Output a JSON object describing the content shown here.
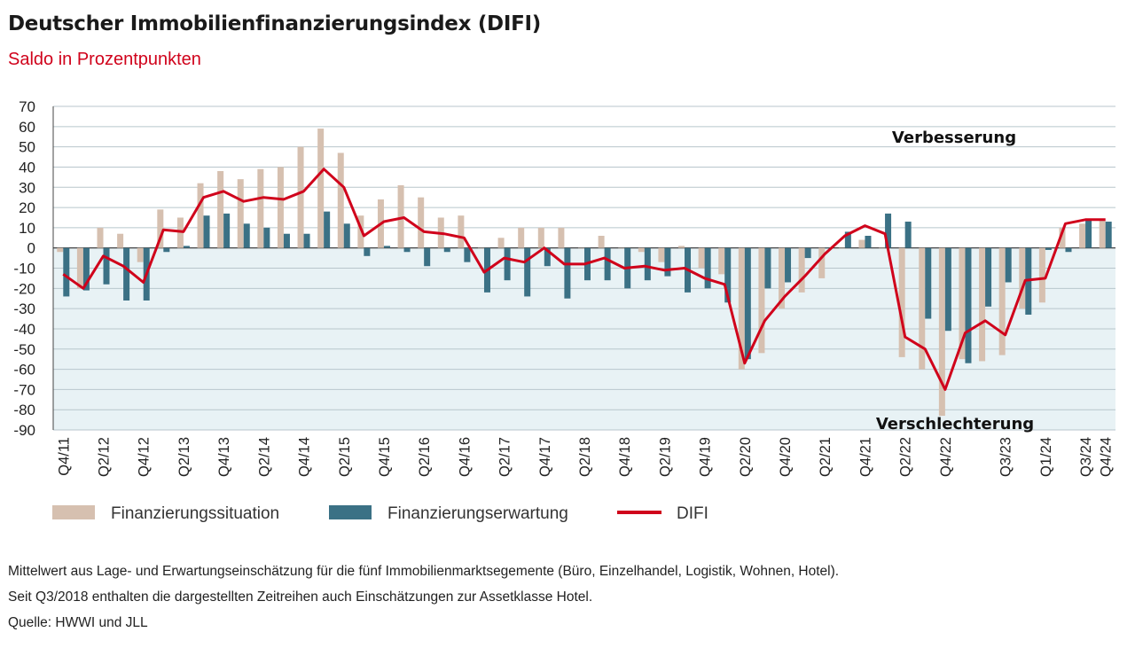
{
  "title": "Deutscher Immobilienfinanzierungsindex (DIFI)",
  "subtitle": "Saldo in Prozentpunkten",
  "annotations": {
    "top": "Verbesserung",
    "bottom": "Verschlechterung"
  },
  "footnotes": [
    "Mittelwert aus Lage- und Erwartungseinschätzung für die fünf Immobilienmarktsegemente (Büro, Einzelhandel, Logistik, Wohnen, Hotel).",
    "Seit Q3/2018 enthalten die dargestellten Zeitreihen auch Einschätzungen zur Assetklasse Hotel.",
    "Quelle: HWWI und JLL"
  ],
  "colors": {
    "situation": "#d6c0b0",
    "erwartung": "#3b7185",
    "difi": "#d0021b",
    "negative_area": "#e8f2f5",
    "grid": "#b8c6cc"
  },
  "chart_data": {
    "type": "bar",
    "ylim": [
      -90,
      70
    ],
    "yticks": [
      70,
      60,
      50,
      40,
      30,
      20,
      10,
      0,
      -10,
      -20,
      -30,
      -40,
      -50,
      -60,
      -70,
      -80,
      -90
    ],
    "categories": [
      "Q4/11",
      "Q1/12",
      "Q2/12",
      "Q3/12",
      "Q4/12",
      "Q1/13",
      "Q2/13",
      "Q3/13",
      "Q4/13",
      "Q1/14",
      "Q2/14",
      "Q3/14",
      "Q4/14",
      "Q1/15",
      "Q2/15",
      "Q3/15",
      "Q4/15",
      "Q1/16",
      "Q2/16",
      "Q3/16",
      "Q4/16",
      "Q1/17",
      "Q2/17",
      "Q3/17",
      "Q4/17",
      "Q1/18",
      "Q2/18",
      "Q3/18",
      "Q4/18",
      "Q1/19",
      "Q2/19",
      "Q3/19",
      "Q4/19",
      "Q1/20",
      "Q2/20",
      "Q3/20",
      "Q4/20",
      "Q1/21",
      "Q2/21",
      "Q3/21",
      "Q4/21",
      "Q1/22",
      "Q2/22",
      "Q3/22",
      "Q4/22",
      "Q1/23",
      "Q2/23",
      "Q3/23",
      "Q4/23",
      "Q1/24",
      "Q2/24",
      "Q3/24",
      "Q4/24"
    ],
    "xtick_labels": [
      "Q4/11",
      "Q2/12",
      "Q4/12",
      "Q2/13",
      "Q4/13",
      "Q2/14",
      "Q4/14",
      "Q2/15",
      "Q4/15",
      "Q2/16",
      "Q4/16",
      "Q2/17",
      "Q4/17",
      "Q2/18",
      "Q4/18",
      "Q2/19",
      "Q4/19",
      "Q2/20",
      "Q4/20",
      "Q2/21",
      "Q4/21",
      "Q2/22",
      "Q4/22",
      "Q3/23",
      "Q1/24",
      "Q3/24",
      "Q4/24"
    ],
    "series": [
      {
        "name": "Finanzierungssituation",
        "type": "bar",
        "values": [
          -2,
          -20,
          10,
          7,
          -7,
          19,
          15,
          32,
          38,
          34,
          39,
          40,
          50,
          59,
          47,
          16,
          24,
          31,
          25,
          15,
          16,
          0,
          5,
          10,
          10,
          10,
          0,
          6,
          0,
          -2,
          -7,
          1,
          -10,
          -13,
          -60,
          -52,
          -30,
          -22,
          -15,
          0,
          4,
          0,
          -54,
          -60,
          -83,
          -55,
          -56,
          -53,
          -30,
          -27,
          10,
          12,
          14
        ]
      },
      {
        "name": "Finanzierungserwartung",
        "type": "bar",
        "values": [
          -24,
          -21,
          -18,
          -26,
          -26,
          -2,
          1,
          16,
          17,
          12,
          10,
          7,
          7,
          18,
          12,
          -4,
          1,
          -2,
          -9,
          -2,
          -7,
          -22,
          -16,
          -24,
          -9,
          -25,
          -16,
          -16,
          -20,
          -16,
          -14,
          -22,
          -20,
          -27,
          -55,
          -20,
          -17,
          -5,
          0,
          8,
          6,
          17,
          13,
          -35,
          -41,
          -57,
          -29,
          -17,
          -33,
          -1,
          -2,
          14,
          13
        ]
      },
      {
        "name": "DIFI",
        "type": "line",
        "values": [
          -13,
          -20,
          -4,
          -9,
          -17,
          9,
          8,
          25,
          28,
          23,
          25,
          24,
          28,
          39,
          30,
          6,
          13,
          15,
          8,
          7,
          5,
          -12,
          -5,
          -7,
          0,
          -8,
          -8,
          -5,
          -10,
          -9,
          -11,
          -10,
          -15,
          -18,
          -57,
          -36,
          -24,
          -14,
          -3,
          6,
          11,
          7,
          -44,
          -50,
          -70,
          -42,
          -36,
          -43,
          -16,
          -15,
          12,
          14,
          14
        ]
      }
    ]
  }
}
